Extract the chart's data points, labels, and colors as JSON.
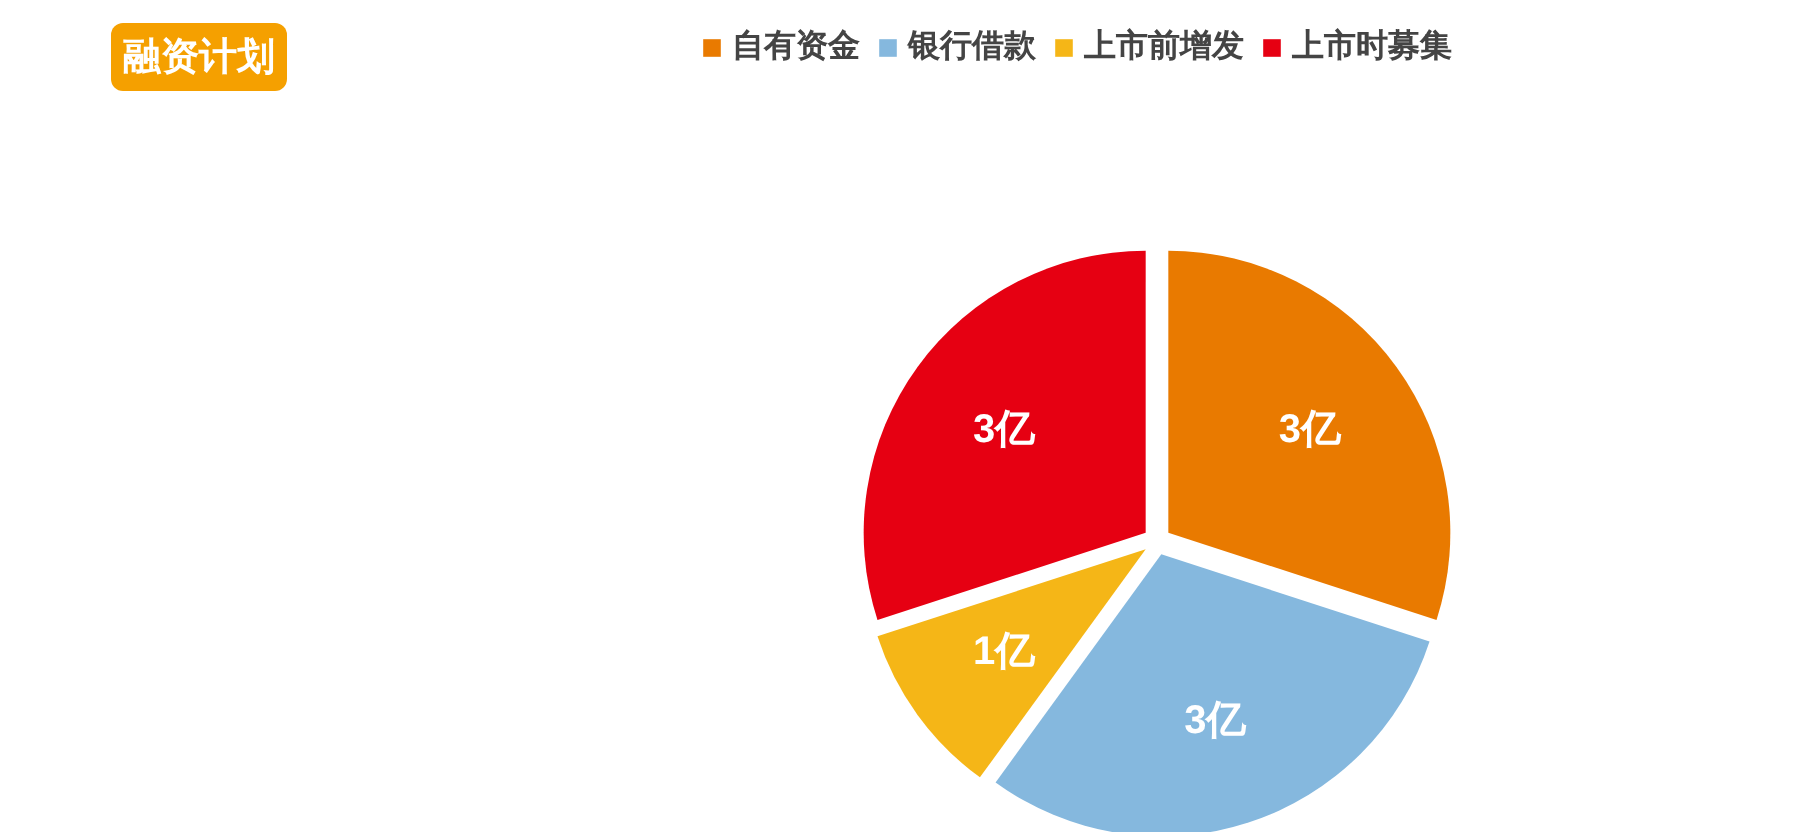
{
  "chart_data": {
    "type": "pie",
    "title": "融资计划",
    "categories": [
      "自有资金",
      "银行借款",
      "上市前增发",
      "上市时募集"
    ],
    "values": [
      3,
      3,
      1,
      3
    ],
    "colors": [
      "#e97a00",
      "#85b8de",
      "#f5b617",
      "#e60012"
    ],
    "value_labels": [
      "3亿",
      "3亿",
      "1亿",
      "3亿"
    ],
    "legend": "top"
  }
}
